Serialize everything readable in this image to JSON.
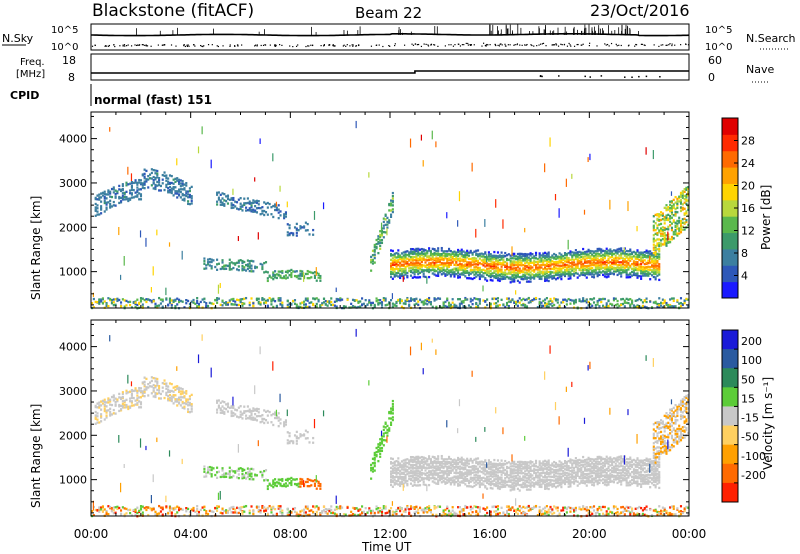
{
  "header": {
    "radar": "Blackstone (fitACF)",
    "beam": "Beam 22",
    "date": "23/Oct/2016"
  },
  "panels_top": {
    "nsky_label": "N.Sky",
    "nsearch_label": "N.Search",
    "freq_label_1": "Freq.",
    "freq_label_2": "[MHz]",
    "nave_label": "Nave",
    "cpid_label": "CPID",
    "cpid_value": "normal (fast) 151",
    "nsky_ticks": [
      "10^5",
      "10^0"
    ],
    "nsearch_ticks": [
      "10^5",
      "10^0"
    ],
    "freq_ticks": [
      "18",
      "8"
    ],
    "nave_ticks": [
      "60",
      "0"
    ]
  },
  "chart_data": [
    {
      "type": "heatmap",
      "quantity": "Power",
      "ylabel": "Slant Range [km]",
      "xlabel": "Time UT",
      "x_ticks": [
        "00:00",
        "04:00",
        "08:00",
        "12:00",
        "16:00",
        "20:00",
        "00:00"
      ],
      "xlim": [
        0,
        24
      ],
      "y_ticks": [
        1000,
        2000,
        3000,
        4000
      ],
      "ylim": [
        180,
        4600
      ],
      "colorbar": {
        "label": "Power [dB]",
        "ticks": [
          4,
          8,
          12,
          16,
          20,
          24,
          28
        ],
        "range": [
          0,
          32
        ],
        "colors": [
          "#1a1aff",
          "#2e58b8",
          "#3c7fa0",
          "#3c9a6a",
          "#5ab84c",
          "#b8d83c",
          "#ffd400",
          "#ffa200",
          "#ff6a00",
          "#ff2a00",
          "#e00000"
        ]
      }
    },
    {
      "type": "heatmap",
      "quantity": "Velocity",
      "ylabel": "Slant Range [km]",
      "xlabel": "Time UT",
      "x_ticks": [
        "00:00",
        "04:00",
        "08:00",
        "12:00",
        "16:00",
        "20:00",
        "00:00"
      ],
      "xlim": [
        0,
        24
      ],
      "y_ticks": [
        1000,
        2000,
        3000,
        4000
      ],
      "ylim": [
        180,
        4600
      ],
      "colorbar": {
        "label": "Velocity [m s⁻¹]",
        "ticks": [
          "200",
          "100",
          "50",
          "15",
          "-15",
          "-50",
          "-100",
          "-200"
        ],
        "colors": [
          "#1a1ad8",
          "#2a5aa0",
          "#2c8a5a",
          "#5ccc38",
          "#c8c8c8",
          "#ffd060",
          "#ffa000",
          "#ff6a00",
          "#ff2000"
        ]
      }
    }
  ],
  "footer": {
    "xlabel": "Time UT"
  }
}
